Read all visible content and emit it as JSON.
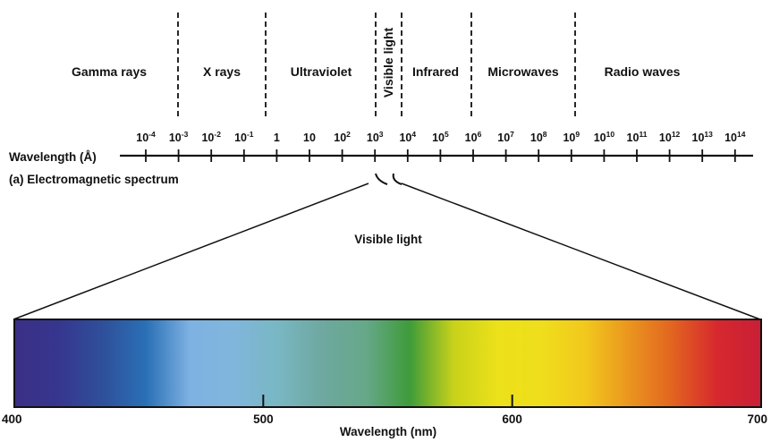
{
  "spectrum": {
    "regions": [
      {
        "label": "Gamma rays",
        "vertical": false
      },
      {
        "label": "X rays",
        "vertical": false
      },
      {
        "label": "Ultraviolet",
        "vertical": false
      },
      {
        "label": "Visible light",
        "vertical": true
      },
      {
        "label": "Infrared",
        "vertical": false
      },
      {
        "label": "Microwaves",
        "vertical": false
      },
      {
        "label": "Radio waves",
        "vertical": false
      }
    ],
    "ticks": [
      {
        "base": "10",
        "exp": "-4"
      },
      {
        "base": "10",
        "exp": "-3"
      },
      {
        "base": "10",
        "exp": "-2"
      },
      {
        "base": "10",
        "exp": "-1"
      },
      {
        "base": "1",
        "exp": ""
      },
      {
        "base": "10",
        "exp": ""
      },
      {
        "base": "10",
        "exp": "2"
      },
      {
        "base": "10",
        "exp": "3"
      },
      {
        "base": "10",
        "exp": "4"
      },
      {
        "base": "10",
        "exp": "5"
      },
      {
        "base": "10",
        "exp": "6"
      },
      {
        "base": "10",
        "exp": "7"
      },
      {
        "base": "10",
        "exp": "8"
      },
      {
        "base": "10",
        "exp": "9"
      },
      {
        "base": "10",
        "exp": "10"
      },
      {
        "base": "10",
        "exp": "11"
      },
      {
        "base": "10",
        "exp": "12"
      },
      {
        "base": "10",
        "exp": "13"
      },
      {
        "base": "10",
        "exp": "14"
      }
    ],
    "axis_label": "Wavelength (Å)",
    "caption": "(a) Electromagnetic spectrum"
  },
  "visible": {
    "title": "Visible light",
    "ticks": [
      "400",
      "500",
      "600",
      "700"
    ],
    "axis_label": "Wavelength (nm)",
    "colors": [
      "#3b2f86",
      "#36368e",
      "#2f4f9a",
      "#2a70b6",
      "#7eb2e2",
      "#80b6dc",
      "#79b7c3",
      "#6ea8a0",
      "#66a889",
      "#3f9b3a",
      "#c8d21a",
      "#ece11a",
      "#efde1c",
      "#f2c81d",
      "#ea951f",
      "#e26320",
      "#d6282e",
      "#c91f36"
    ]
  }
}
